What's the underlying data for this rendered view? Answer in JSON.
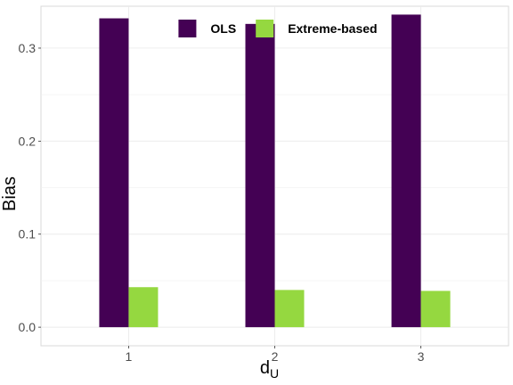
{
  "chart_data": {
    "type": "bar",
    "categories": [
      "1",
      "2",
      "3"
    ],
    "series": [
      {
        "name": "OLS",
        "color": "#440154",
        "values": [
          0.332,
          0.326,
          0.336
        ]
      },
      {
        "name": "Extreme-based",
        "color": "#95D840",
        "values": [
          0.043,
          0.04,
          0.039
        ]
      }
    ],
    "xlabel": "d",
    "xlabel_subscript": "U",
    "ylabel": "Bias",
    "ylim": [
      -0.02,
      0.345
    ],
    "yticks": [
      0.0,
      0.1,
      0.2,
      0.3
    ],
    "ytick_labels": [
      "0.0",
      "0.1",
      "0.2",
      "0.3"
    ],
    "grid": true,
    "legend_position": "top"
  }
}
